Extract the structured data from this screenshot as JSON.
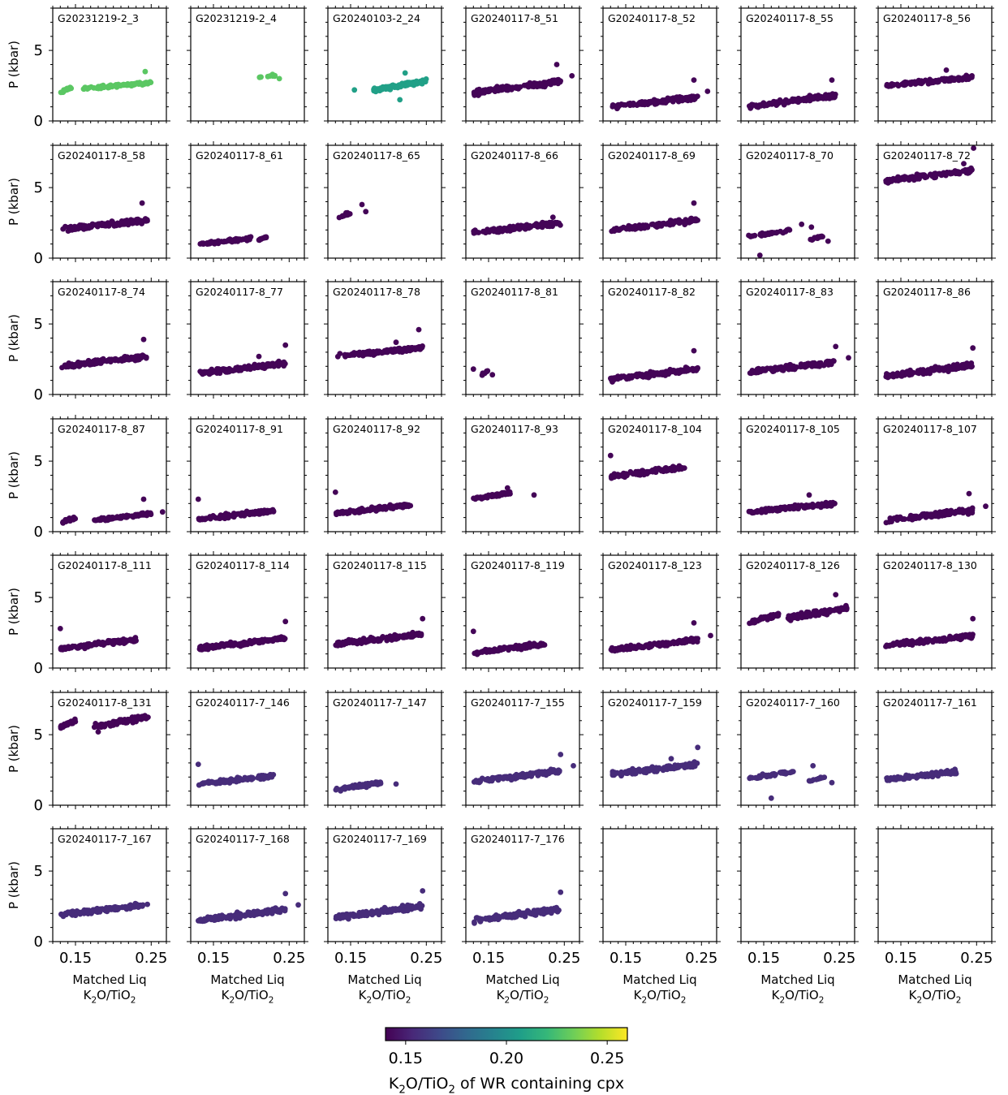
{
  "chart_data": {
    "type": "scatter",
    "layout": "small-multiples grid, 7 rows x 7 columns",
    "ylabel": "P (kbar)",
    "xlabel_line1": "Matched Liq",
    "xlabel_line2": "K₂O/TiO₂",
    "ylim": [
      0,
      8
    ],
    "xlim": [
      0.12,
      0.27
    ],
    "yticks": [
      0,
      5
    ],
    "yticklabels": [
      "0",
      "5"
    ],
    "xticks": [
      0.15,
      0.25
    ],
    "xticklabels": [
      "0.15",
      "0.25"
    ],
    "colorbar": {
      "label": "K₂O/TiO₂ of WR containing cpx",
      "range": [
        0.14,
        0.26
      ],
      "ticks": [
        0.15,
        0.2,
        0.25
      ],
      "ticklabels": [
        "0.15",
        "0.20",
        "0.25"
      ],
      "colormap": "viridis",
      "colors": [
        "#440154",
        "#482878",
        "#3e4989",
        "#31688e",
        "#26828e",
        "#1f9e89",
        "#35b779",
        "#6ece58",
        "#b5de2b",
        "#fde725"
      ]
    },
    "panels": [
      {
        "name": "G20231219-2_3",
        "wr": 0.229,
        "segments": [
          [
            0.13,
            0.145,
            2.0,
            2.4
          ],
          [
            0.16,
            0.25,
            2.3,
            2.7
          ]
        ],
        "n": 110,
        "outliers": [
          [
            0.242,
            3.5
          ]
        ]
      },
      {
        "name": "G20231219-2_4",
        "wr": 0.229,
        "segments": [
          [
            0.21,
            0.232,
            3.1,
            3.2
          ]
        ],
        "n": 9,
        "outliers": [
          [
            0.228,
            3.3
          ],
          [
            0.237,
            3.0
          ]
        ]
      },
      {
        "name": "G20240103-2_24",
        "wr": 0.208,
        "segments": [
          [
            0.18,
            0.25,
            2.2,
            2.8
          ]
        ],
        "n": 110,
        "outliers": [
          [
            0.155,
            2.2
          ],
          [
            0.222,
            3.4
          ],
          [
            0.215,
            1.5
          ]
        ]
      },
      {
        "name": "G20240117-8_51",
        "wr": 0.141,
        "segments": [
          [
            0.13,
            0.245,
            2.0,
            2.8
          ]
        ],
        "n": 130,
        "outliers": [
          [
            0.24,
            4.0
          ],
          [
            0.26,
            3.2
          ]
        ]
      },
      {
        "name": "G20240117-8_52",
        "wr": 0.141,
        "segments": [
          [
            0.13,
            0.245,
            1.0,
            1.7
          ]
        ],
        "n": 130,
        "outliers": [
          [
            0.24,
            2.9
          ],
          [
            0.258,
            2.1
          ]
        ]
      },
      {
        "name": "G20240117-8_55",
        "wr": 0.141,
        "segments": [
          [
            0.13,
            0.245,
            1.0,
            1.8
          ]
        ],
        "n": 130,
        "outliers": [
          [
            0.24,
            2.9
          ]
        ]
      },
      {
        "name": "G20240117-8_56",
        "wr": 0.141,
        "segments": [
          [
            0.13,
            0.245,
            2.5,
            3.1
          ]
        ],
        "n": 120,
        "outliers": [
          [
            0.21,
            3.6
          ]
        ]
      },
      {
        "name": "G20240117-8_58",
        "wr": 0.141,
        "segments": [
          [
            0.13,
            0.245,
            2.0,
            2.7
          ]
        ],
        "n": 130,
        "outliers": [
          [
            0.238,
            3.9
          ]
        ]
      },
      {
        "name": "G20240117-8_61",
        "wr": 0.141,
        "segments": [
          [
            0.13,
            0.2,
            1.0,
            1.4
          ],
          [
            0.21,
            0.22,
            1.3,
            1.5
          ]
        ],
        "n": 90,
        "outliers": []
      },
      {
        "name": "G20240117-8_65",
        "wr": 0.141,
        "segments": [
          [
            0.13,
            0.15,
            2.8,
            3.2
          ]
        ],
        "n": 14,
        "outliers": [
          [
            0.165,
            3.8
          ],
          [
            0.17,
            3.3
          ]
        ]
      },
      {
        "name": "G20240117-8_66",
        "wr": 0.141,
        "segments": [
          [
            0.13,
            0.245,
            1.8,
            2.5
          ]
        ],
        "n": 130,
        "outliers": [
          [
            0.235,
            2.9
          ]
        ]
      },
      {
        "name": "G20240117-8_69",
        "wr": 0.141,
        "segments": [
          [
            0.13,
            0.245,
            2.0,
            2.7
          ]
        ],
        "n": 130,
        "outliers": [
          [
            0.24,
            3.9
          ]
        ]
      },
      {
        "name": "G20240117-8_70",
        "wr": 0.141,
        "segments": [
          [
            0.13,
            0.185,
            1.5,
            2.0
          ],
          [
            0.21,
            0.23,
            1.3,
            1.6
          ]
        ],
        "n": 45,
        "outliers": [
          [
            0.145,
            0.2
          ],
          [
            0.2,
            2.4
          ],
          [
            0.213,
            2.2
          ],
          [
            0.235,
            1.2
          ]
        ]
      },
      {
        "name": "G20240117-8_72",
        "wr": 0.141,
        "segments": [
          [
            0.13,
            0.245,
            5.5,
            6.2
          ]
        ],
        "n": 120,
        "outliers": [
          [
            0.246,
            7.8
          ],
          [
            0.233,
            6.7
          ]
        ]
      },
      {
        "name": "G20240117-8_74",
        "wr": 0.141,
        "segments": [
          [
            0.13,
            0.245,
            2.0,
            2.7
          ]
        ],
        "n": 130,
        "outliers": [
          [
            0.24,
            3.9
          ]
        ]
      },
      {
        "name": "G20240117-8_77",
        "wr": 0.141,
        "segments": [
          [
            0.13,
            0.245,
            1.5,
            2.2
          ]
        ],
        "n": 130,
        "outliers": [
          [
            0.245,
            3.5
          ],
          [
            0.21,
            2.7
          ]
        ]
      },
      {
        "name": "G20240117-8_78",
        "wr": 0.141,
        "segments": [
          [
            0.13,
            0.245,
            2.7,
            3.3
          ]
        ],
        "n": 130,
        "outliers": [
          [
            0.24,
            4.6
          ],
          [
            0.21,
            3.7
          ]
        ]
      },
      {
        "name": "G20240117-8_81",
        "wr": 0.141,
        "segments": [
          [
            0.14,
            0.15,
            1.4,
            1.7
          ]
        ],
        "n": 8,
        "outliers": [
          [
            0.13,
            1.8
          ],
          [
            0.155,
            1.4
          ]
        ]
      },
      {
        "name": "G20240117-8_82",
        "wr": 0.141,
        "segments": [
          [
            0.13,
            0.245,
            1.1,
            1.8
          ]
        ],
        "n": 130,
        "outliers": [
          [
            0.24,
            3.1
          ]
        ]
      },
      {
        "name": "G20240117-8_83",
        "wr": 0.141,
        "segments": [
          [
            0.13,
            0.245,
            1.6,
            2.3
          ]
        ],
        "n": 130,
        "outliers": [
          [
            0.245,
            3.4
          ],
          [
            0.262,
            2.6
          ]
        ]
      },
      {
        "name": "G20240117-8_86",
        "wr": 0.141,
        "segments": [
          [
            0.13,
            0.245,
            1.3,
            2.1
          ]
        ],
        "n": 130,
        "outliers": [
          [
            0.245,
            3.3
          ]
        ]
      },
      {
        "name": "G20240117-8_87",
        "wr": 0.141,
        "segments": [
          [
            0.13,
            0.15,
            0.6,
            1.0
          ],
          [
            0.175,
            0.25,
            0.8,
            1.3
          ]
        ],
        "n": 110,
        "outliers": [
          [
            0.24,
            2.3
          ],
          [
            0.265,
            1.4
          ]
        ]
      },
      {
        "name": "G20240117-8_91",
        "wr": 0.141,
        "segments": [
          [
            0.13,
            0.23,
            0.9,
            1.5
          ]
        ],
        "n": 110,
        "outliers": [
          [
            0.13,
            2.3
          ]
        ]
      },
      {
        "name": "G20240117-8_92",
        "wr": 0.141,
        "segments": [
          [
            0.13,
            0.23,
            1.3,
            1.9
          ]
        ],
        "n": 110,
        "outliers": [
          [
            0.13,
            2.8
          ]
        ]
      },
      {
        "name": "G20240117-8_93",
        "wr": 0.141,
        "segments": [
          [
            0.13,
            0.18,
            2.3,
            2.8
          ]
        ],
        "n": 60,
        "outliers": [
          [
            0.175,
            3.1
          ],
          [
            0.21,
            2.6
          ]
        ]
      },
      {
        "name": "G20240117-8_104",
        "wr": 0.141,
        "segments": [
          [
            0.13,
            0.23,
            3.9,
            4.6
          ]
        ],
        "n": 110,
        "outliers": [
          [
            0.13,
            5.4
          ]
        ]
      },
      {
        "name": "G20240117-8_105",
        "wr": 0.141,
        "segments": [
          [
            0.13,
            0.245,
            1.4,
            2.0
          ]
        ],
        "n": 130,
        "outliers": [
          [
            0.21,
            2.6
          ]
        ]
      },
      {
        "name": "G20240117-8_107",
        "wr": 0.141,
        "segments": [
          [
            0.13,
            0.245,
            0.8,
            1.5
          ]
        ],
        "n": 130,
        "outliers": [
          [
            0.24,
            2.7
          ],
          [
            0.262,
            1.8
          ]
        ]
      },
      {
        "name": "G20240117-8_111",
        "wr": 0.141,
        "segments": [
          [
            0.13,
            0.23,
            1.4,
            2.0
          ]
        ],
        "n": 110,
        "outliers": [
          [
            0.13,
            2.8
          ]
        ]
      },
      {
        "name": "G20240117-8_114",
        "wr": 0.141,
        "segments": [
          [
            0.13,
            0.245,
            1.4,
            2.1
          ]
        ],
        "n": 130,
        "outliers": [
          [
            0.245,
            3.3
          ]
        ]
      },
      {
        "name": "G20240117-8_115",
        "wr": 0.141,
        "segments": [
          [
            0.13,
            0.245,
            1.7,
            2.4
          ]
        ],
        "n": 130,
        "outliers": [
          [
            0.245,
            3.5
          ]
        ]
      },
      {
        "name": "G20240117-8_119",
        "wr": 0.141,
        "segments": [
          [
            0.13,
            0.225,
            1.1,
            1.7
          ]
        ],
        "n": 110,
        "outliers": [
          [
            0.13,
            2.6
          ]
        ]
      },
      {
        "name": "G20240117-8_123",
        "wr": 0.141,
        "segments": [
          [
            0.13,
            0.245,
            1.3,
            2.0
          ]
        ],
        "n": 130,
        "outliers": [
          [
            0.24,
            3.2
          ],
          [
            0.262,
            2.3
          ]
        ]
      },
      {
        "name": "G20240117-8_126",
        "wr": 0.141,
        "segments": [
          [
            0.13,
            0.17,
            3.2,
            3.8
          ],
          [
            0.18,
            0.26,
            3.5,
            4.3
          ]
        ],
        "n": 130,
        "outliers": [
          [
            0.245,
            5.2
          ]
        ]
      },
      {
        "name": "G20240117-8_130",
        "wr": 0.141,
        "segments": [
          [
            0.13,
            0.245,
            1.6,
            2.3
          ]
        ],
        "n": 130,
        "outliers": [
          [
            0.245,
            3.5
          ]
        ]
      },
      {
        "name": "G20240117-8_131",
        "wr": 0.141,
        "segments": [
          [
            0.13,
            0.15,
            5.5,
            6.0
          ],
          [
            0.175,
            0.25,
            5.6,
            6.3
          ]
        ],
        "n": 130,
        "outliers": [
          [
            0.18,
            5.2
          ]
        ]
      },
      {
        "name": "G20240117-7_146",
        "wr": 0.155,
        "segments": [
          [
            0.13,
            0.23,
            1.5,
            2.1
          ]
        ],
        "n": 110,
        "outliers": [
          [
            0.13,
            2.9
          ]
        ]
      },
      {
        "name": "G20240117-7_147",
        "wr": 0.155,
        "segments": [
          [
            0.13,
            0.19,
            1.1,
            1.6
          ]
        ],
        "n": 80,
        "outliers": [
          [
            0.21,
            1.5
          ]
        ]
      },
      {
        "name": "G20240117-7_155",
        "wr": 0.155,
        "segments": [
          [
            0.13,
            0.245,
            1.7,
            2.4
          ]
        ],
        "n": 130,
        "outliers": [
          [
            0.245,
            3.6
          ],
          [
            0.262,
            2.8
          ]
        ]
      },
      {
        "name": "G20240117-7_159",
        "wr": 0.155,
        "segments": [
          [
            0.13,
            0.245,
            2.2,
            2.9
          ]
        ],
        "n": 130,
        "outliers": [
          [
            0.245,
            4.1
          ],
          [
            0.21,
            3.3
          ]
        ]
      },
      {
        "name": "G20240117-7_160",
        "wr": 0.155,
        "segments": [
          [
            0.13,
            0.19,
            1.9,
            2.4
          ],
          [
            0.21,
            0.23,
            1.7,
            2.0
          ]
        ],
        "n": 55,
        "outliers": [
          [
            0.16,
            0.5
          ],
          [
            0.215,
            2.8
          ],
          [
            0.24,
            1.6
          ]
        ]
      },
      {
        "name": "G20240117-7_161",
        "wr": 0.155,
        "segments": [
          [
            0.13,
            0.225,
            1.8,
            2.4
          ]
        ],
        "n": 100,
        "outliers": []
      },
      {
        "name": "G20240117-7_167",
        "wr": 0.155,
        "segments": [
          [
            0.13,
            0.245,
            1.9,
            2.6
          ]
        ],
        "n": 120,
        "outliers": []
      },
      {
        "name": "G20240117-7_168",
        "wr": 0.155,
        "segments": [
          [
            0.13,
            0.245,
            1.5,
            2.3
          ]
        ],
        "n": 130,
        "outliers": [
          [
            0.245,
            3.4
          ],
          [
            0.262,
            2.6
          ]
        ]
      },
      {
        "name": "G20240117-7_169",
        "wr": 0.155,
        "segments": [
          [
            0.13,
            0.245,
            1.7,
            2.5
          ]
        ],
        "n": 130,
        "outliers": [
          [
            0.245,
            3.6
          ]
        ]
      },
      {
        "name": "G20240117-7_176",
        "wr": 0.155,
        "segments": [
          [
            0.13,
            0.245,
            1.5,
            2.3
          ]
        ],
        "n": 130,
        "outliers": [
          [
            0.245,
            3.5
          ]
        ]
      },
      {
        "name": "",
        "empty": true
      },
      {
        "name": "",
        "empty": true
      },
      {
        "name": "",
        "empty": true
      }
    ]
  }
}
